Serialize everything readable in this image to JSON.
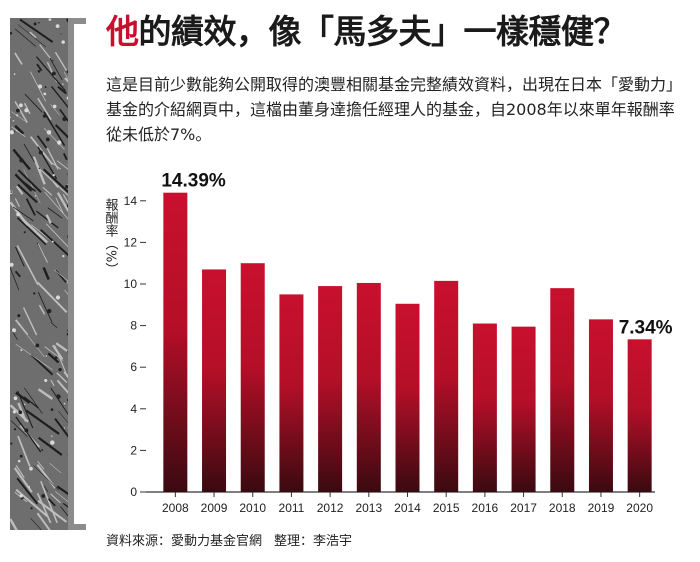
{
  "headline": {
    "accent": "他",
    "rest": "的績效，像「馬多夫」一樣穩健？"
  },
  "intro": "這是目前少數能夠公開取得的澳豐相關基金完整績效資料，出現在日本「愛動力」基金的介紹網頁中，這檔由董身達擔任經理人的基金，自2008年以來單年報酬率從未低於7%。",
  "source": {
    "data": "資料來源：愛動力基金官網",
    "editor": "整理：李浩宇"
  },
  "colors": {
    "accent": "#c8102e",
    "bar_top": "#c8102e",
    "bar_bottom": "#3a0a10"
  },
  "chart_data": {
    "type": "bar",
    "ylabel": "報酬率（%）",
    "ylim": [
      0,
      15
    ],
    "yticks": [
      0,
      2,
      4,
      6,
      8,
      10,
      12,
      14
    ],
    "categories": [
      "2008",
      "2009",
      "2010",
      "2011",
      "2012",
      "2013",
      "2014",
      "2015",
      "2016",
      "2017",
      "2018",
      "2019",
      "2020"
    ],
    "values": [
      14.39,
      10.7,
      11.0,
      9.5,
      9.9,
      10.05,
      9.05,
      10.15,
      8.1,
      7.95,
      9.8,
      8.3,
      7.34
    ],
    "data_labels": [
      {
        "index": 0,
        "text": "14.39%"
      },
      {
        "index": 12,
        "text": "7.34%"
      }
    ],
    "grid": false
  }
}
